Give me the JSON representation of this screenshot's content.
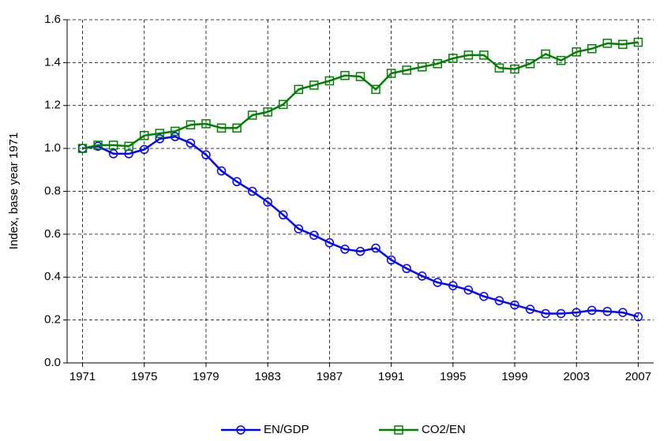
{
  "chart_data": {
    "type": "line",
    "y_label": "Index, base year 1971",
    "x": [
      1971,
      1972,
      1973,
      1974,
      1975,
      1976,
      1977,
      1978,
      1979,
      1980,
      1981,
      1982,
      1983,
      1984,
      1985,
      1986,
      1987,
      1988,
      1989,
      1990,
      1991,
      1992,
      1993,
      1994,
      1995,
      1996,
      1997,
      1998,
      1999,
      2000,
      2001,
      2002,
      2003,
      2004,
      2005,
      2006,
      2007
    ],
    "series": [
      {
        "name": "EN/GDP",
        "color": "#0000ff",
        "marker": "circle",
        "values": [
          1.0,
          1.01,
          0.975,
          0.975,
          0.995,
          1.045,
          1.055,
          1.025,
          0.97,
          0.895,
          0.845,
          0.8,
          0.75,
          0.69,
          0.625,
          0.595,
          0.56,
          0.53,
          0.52,
          0.535,
          0.48,
          0.44,
          0.405,
          0.375,
          0.36,
          0.34,
          0.31,
          0.29,
          0.27,
          0.25,
          0.23,
          0.23,
          0.235,
          0.245,
          0.24,
          0.235,
          0.215
        ]
      },
      {
        "name": "CO2/EN",
        "color": "#008000",
        "marker": "square",
        "values": [
          1.0,
          1.015,
          1.015,
          1.01,
          1.06,
          1.07,
          1.08,
          1.11,
          1.115,
          1.095,
          1.095,
          1.155,
          1.17,
          1.205,
          1.275,
          1.295,
          1.315,
          1.34,
          1.335,
          1.275,
          1.35,
          1.365,
          1.38,
          1.395,
          1.42,
          1.435,
          1.435,
          1.375,
          1.37,
          1.395,
          1.44,
          1.41,
          1.45,
          1.465,
          1.49,
          1.485,
          1.495
        ]
      }
    ],
    "xlim": [
      1970,
      2008
    ],
    "xticks": [
      1971,
      1975,
      1979,
      1983,
      1987,
      1991,
      1995,
      1999,
      2003,
      2007
    ],
    "ylim": [
      0,
      1.6
    ],
    "yticks": [
      {
        "value": 0,
        "label": "0.0"
      },
      {
        "value": 0.2,
        "label": "0.2"
      },
      {
        "value": 0.4,
        "label": "0.4"
      },
      {
        "value": 0.6,
        "label": "0.6"
      },
      {
        "value": 0.8,
        "label": "0.8"
      },
      {
        "value": 1.0,
        "label": "1.0"
      },
      {
        "value": 1.2,
        "label": "1.2"
      },
      {
        "value": 1.4,
        "label": "1.4"
      },
      {
        "value": 1.6,
        "label": "1.6"
      }
    ],
    "grid": true,
    "legend": "bottom"
  }
}
